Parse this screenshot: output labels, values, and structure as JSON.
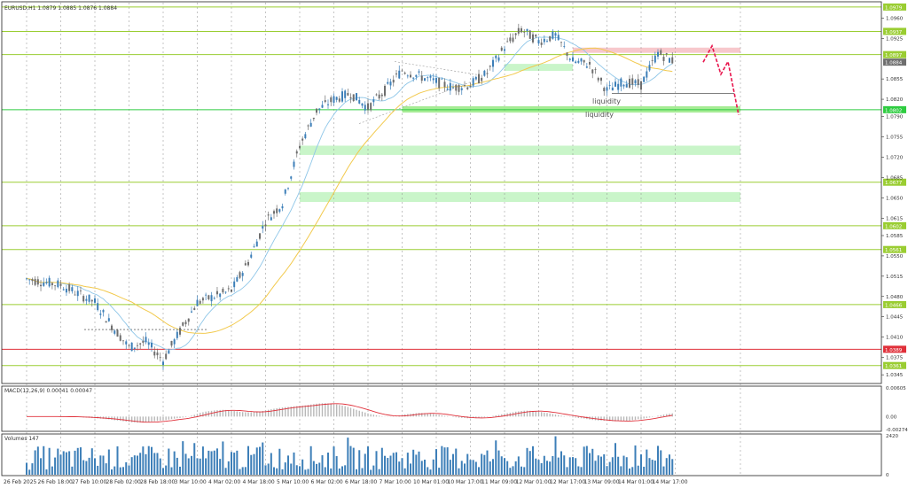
{
  "chart_data": {
    "type": "candlestick",
    "symbol_title": "EURUSD,H1  1.0879 1.0885 1.0876 1.0884",
    "price_axis": {
      "ylim": [
        1.033,
        1.0985
      ],
      "ticks": [
        "1.0960",
        "1.0925",
        "1.0855",
        "1.0820",
        "1.0790",
        "1.0755",
        "1.0720",
        "1.0685",
        "1.0650",
        "1.0615",
        "1.0585",
        "1.0550",
        "1.0515",
        "1.0480",
        "1.0445",
        "1.0410",
        "1.0375",
        "1.0345"
      ],
      "level_labels": [
        {
          "label": "1.0979",
          "color": "#9acd32"
        },
        {
          "label": "1.0937",
          "color": "#9acd32"
        },
        {
          "label": "1.0897",
          "color": "#9acd32"
        },
        {
          "label": "1.0884",
          "color": "#6e6e6e"
        },
        {
          "label": "1.0802",
          "color": "#2ecc40"
        },
        {
          "label": "1.0677",
          "color": "#9acd32"
        },
        {
          "label": "1.0602",
          "color": "#9acd32"
        },
        {
          "label": "1.0561",
          "color": "#9acd32"
        },
        {
          "label": "1.0466",
          "color": "#9acd32"
        },
        {
          "label": "1.0389",
          "color": "#e0303a"
        },
        {
          "label": "1.0361",
          "color": "#9acd32"
        }
      ]
    },
    "zones": [
      {
        "price_from": 1.0881,
        "price_to": 1.0869,
        "date_from": "11 Mar 09:00",
        "date_to": "12 Mar 17:00",
        "color": "#c9f5c9"
      },
      {
        "price_from": 1.0909,
        "price_to": 1.09,
        "date_from": "12 Mar 17:00",
        "date_to": "17 Mar",
        "color": "#f7c8cc"
      },
      {
        "price_from": 1.0808,
        "price_to": 1.0797,
        "date_from": "7 Mar 10:00",
        "date_to": "17 Mar",
        "color": "#a6ec95"
      },
      {
        "price_from": 1.074,
        "price_to": 1.0724,
        "date_from": "5 Mar 10:00",
        "date_to": "17 Mar",
        "color": "#c9f5c9"
      },
      {
        "price_from": 1.066,
        "price_to": 1.0643,
        "date_from": "5 Mar 10:00",
        "date_to": "17 Mar",
        "color": "#c9f5c9"
      }
    ],
    "annotations": [
      "liquidity",
      "liquidity"
    ],
    "macd": {
      "title": "MACD(12,26,9) 0.00041 0.00047",
      "ticks": [
        "0.00605",
        "0.00",
        "-0.00274"
      ],
      "ylim": [
        -0.00274,
        0.00605
      ]
    },
    "volumes": {
      "title": "Volumes 147",
      "ticks": [
        "2420",
        "0"
      ],
      "ylim": [
        0,
        2420
      ]
    },
    "time_labels": [
      "26 Feb 2025",
      "26 Feb 18:00",
      "27 Feb 10:00",
      "28 Feb 02:00",
      "28 Feb 18:00",
      "3 Mar 10:00",
      "4 Mar 02:00",
      "4 Mar 18:00",
      "5 Mar 10:00",
      "6 Mar 02:00",
      "6 Mar 18:00",
      "7 Mar 10:00",
      "10 Mar 01:00",
      "10 Mar 17:00",
      "11 Mar 09:00",
      "12 Mar 01:00",
      "12 Mar 17:00",
      "13 Mar 09:00",
      "14 Mar 01:00",
      "14 Mar 17:00"
    ],
    "series_points": [
      {
        "time": "26 Feb 2025",
        "price": 1.051
      },
      {
        "time": "26 Feb 18:00",
        "price": 1.05
      },
      {
        "time": "27 Feb 10:00",
        "price": 1.047
      },
      {
        "time": "27 Feb 18:00",
        "price": 1.043
      },
      {
        "time": "28 Feb 02:00",
        "price": 1.0392
      },
      {
        "time": "28 Feb 10:00",
        "price": 1.0402
      },
      {
        "time": "28 Feb 18:00",
        "price": 1.037
      },
      {
        "time": "3 Mar 02:00",
        "price": 1.042
      },
      {
        "time": "3 Mar 10:00",
        "price": 1.047
      },
      {
        "time": "4 Mar 02:00",
        "price": 1.049
      },
      {
        "time": "4 Mar 10:00",
        "price": 1.054
      },
      {
        "time": "4 Mar 18:00",
        "price": 1.061
      },
      {
        "time": "5 Mar 02:00",
        "price": 1.064
      },
      {
        "time": "5 Mar 10:00",
        "price": 1.074
      },
      {
        "time": "5 Mar 18:00",
        "price": 1.08
      },
      {
        "time": "6 Mar 02:00",
        "price": 1.082
      },
      {
        "time": "6 Mar 10:00",
        "price": 1.083
      },
      {
        "time": "6 Mar 18:00",
        "price": 1.0805
      },
      {
        "time": "7 Mar 02:00",
        "price": 1.0835
      },
      {
        "time": "7 Mar 10:00",
        "price": 1.087
      },
      {
        "time": "7 Mar 18:00",
        "price": 1.086
      },
      {
        "time": "10 Mar 01:00",
        "price": 1.085
      },
      {
        "time": "10 Mar 10:00",
        "price": 1.084
      },
      {
        "time": "10 Mar 17:00",
        "price": 1.0845
      },
      {
        "time": "11 Mar 01:00",
        "price": 1.0865
      },
      {
        "time": "11 Mar 09:00",
        "price": 1.091
      },
      {
        "time": "11 Mar 17:00",
        "price": 1.094
      },
      {
        "time": "12 Mar 01:00",
        "price": 1.092
      },
      {
        "time": "12 Mar 09:00",
        "price": 1.093
      },
      {
        "time": "12 Mar 17:00",
        "price": 1.0885
      },
      {
        "time": "13 Mar 01:00",
        "price": 1.088
      },
      {
        "time": "13 Mar 09:00",
        "price": 1.0835
      },
      {
        "time": "13 Mar 17:00",
        "price": 1.085
      },
      {
        "time": "14 Mar 01:00",
        "price": 1.0845
      },
      {
        "time": "14 Mar 09:00",
        "price": 1.09
      },
      {
        "time": "14 Mar 17:00",
        "price": 1.0884
      }
    ],
    "forecast_path": [
      1.0884,
      1.0912,
      1.0863,
      1.0885,
      1.0793
    ],
    "colors": {
      "bull_candle": "#3d7fb8",
      "bear_candle": "#6e6e6e",
      "ma_fast": "#8ec6e8",
      "ma_slow": "#f2c94c",
      "macd_signal": "#e0303a",
      "macd_hist": "#b8b8b8",
      "volume": "#3d7fb8",
      "forecast": "#e8154d",
      "grid": "#8a8a8a"
    }
  }
}
